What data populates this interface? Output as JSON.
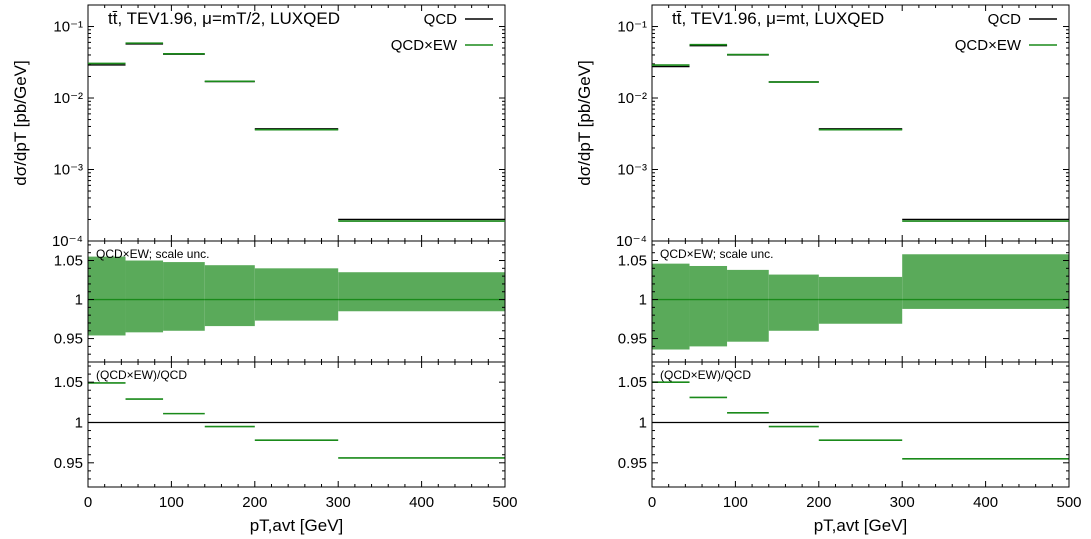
{
  "colors": {
    "qcd": "#000000",
    "qcdew": "#1a8a1a",
    "band": "#5aaa5a",
    "frame": "#000000"
  },
  "chart_data": [
    {
      "type": "histogram",
      "title": "tt̄, TEV1.96, μ=mT/2, LUXQED",
      "xlabel": "pT,avt [GeV]",
      "ylabel_top": "dσ/dpT [pb/GeV]",
      "xlim": [
        0,
        500
      ],
      "x_tick_labels": [
        "0",
        "100",
        "200",
        "300",
        "400",
        "500"
      ],
      "bin_edges": [
        0,
        45,
        90,
        140,
        200,
        300,
        500
      ],
      "top_panel": {
        "yscale": "log",
        "ylim": [
          0.0001,
          0.2
        ],
        "y_tick_labels": [
          "10⁻⁴",
          "10⁻³",
          "10⁻²",
          "10⁻¹"
        ],
        "legend": {
          "placement": "top-right",
          "entries": [
            "QCD",
            "QCD×EW"
          ]
        },
        "series": [
          {
            "name": "QCD",
            "values": [
              0.029,
              0.057,
              0.041,
              0.017,
              0.0037,
              0.0002
            ]
          },
          {
            "name": "QCD×EW",
            "values": [
              0.0305,
              0.0586,
              0.0415,
              0.0171,
              0.0036,
              0.00019
            ]
          }
        ]
      },
      "middle_panel": {
        "label": "QCD×EW; scale unc.",
        "ylim": [
          0.92,
          1.075
        ],
        "y_tick_labels": [
          "0.95",
          "1",
          "1.05"
        ],
        "central": [
          1,
          1,
          1,
          1,
          1,
          1
        ],
        "band_low": [
          0.954,
          0.958,
          0.96,
          0.966,
          0.973,
          0.985
        ],
        "band_high": [
          1.055,
          1.05,
          1.048,
          1.044,
          1.04,
          1.035
        ]
      },
      "bottom_panel": {
        "label": "(QCD×EW)/QCD",
        "ylim": [
          0.92,
          1.075
        ],
        "y_tick_labels": [
          "0.95",
          "1",
          "1.05"
        ],
        "reference": 1,
        "ratio": [
          1.049,
          1.029,
          1.011,
          0.995,
          0.978,
          0.956
        ]
      }
    },
    {
      "type": "histogram",
      "title": "tt̄, TEV1.96, μ=mt, LUXQED",
      "xlabel": "pT,avt [GeV]",
      "ylabel_top": "dσ/dpT [pb/GeV]",
      "xlim": [
        0,
        500
      ],
      "x_tick_labels": [
        "0",
        "100",
        "200",
        "300",
        "400",
        "500"
      ],
      "bin_edges": [
        0,
        45,
        90,
        140,
        200,
        300,
        500
      ],
      "top_panel": {
        "yscale": "log",
        "ylim": [
          0.0001,
          0.2
        ],
        "y_tick_labels": [
          "10⁻⁴",
          "10⁻³",
          "10⁻²",
          "10⁻¹"
        ],
        "legend": {
          "placement": "top-right",
          "entries": [
            "QCD",
            "QCD×EW"
          ]
        },
        "series": [
          {
            "name": "QCD",
            "values": [
              0.0275,
              0.054,
              0.04,
              0.0168,
              0.0037,
              0.0002
            ]
          },
          {
            "name": "QCD×EW",
            "values": [
              0.0289,
              0.0557,
              0.0405,
              0.0167,
              0.0036,
              0.00019
            ]
          }
        ]
      },
      "middle_panel": {
        "label": "QCD×EW; scale unc.",
        "ylim": [
          0.92,
          1.075
        ],
        "y_tick_labels": [
          "0.95",
          "1",
          "1.05"
        ],
        "central": [
          1,
          1,
          1,
          1,
          1,
          1
        ],
        "band_low": [
          0.936,
          0.94,
          0.946,
          0.96,
          0.969,
          0.988
        ],
        "band_high": [
          1.046,
          1.043,
          1.038,
          1.032,
          1.029,
          1.058
        ]
      },
      "bottom_panel": {
        "label": "(QCD×EW)/QCD",
        "ylim": [
          0.92,
          1.075
        ],
        "y_tick_labels": [
          "0.95",
          "1",
          "1.05"
        ],
        "reference": 1,
        "ratio": [
          1.05,
          1.031,
          1.012,
          0.995,
          0.978,
          0.955
        ]
      }
    }
  ]
}
